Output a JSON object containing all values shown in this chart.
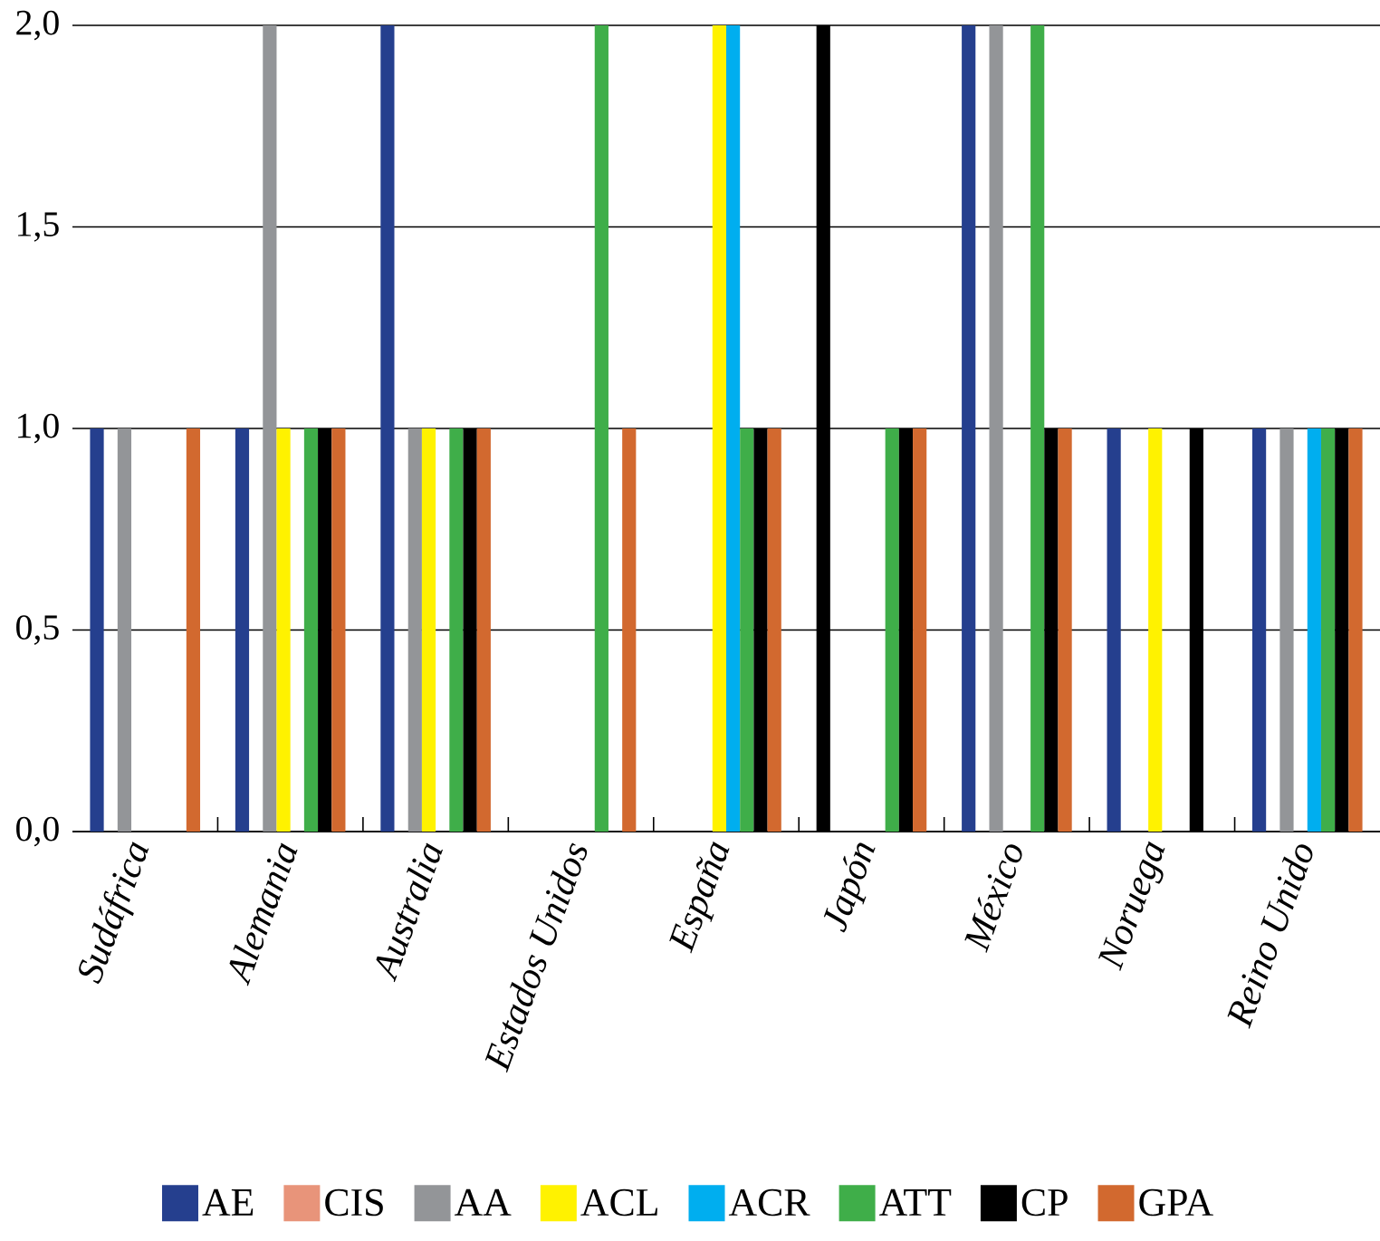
{
  "chart_data": {
    "type": "bar",
    "categories": [
      "Sudáfrica",
      "Alemania",
      "Australia",
      "Estados Unidos",
      "España",
      "Japón",
      "México",
      "Noruega",
      "Reino Unido"
    ],
    "series": [
      {
        "name": "AE",
        "color": "#253f8e",
        "colors": [
          "#253f8e",
          "#253f8e",
          "#253f8e",
          "#253f8e",
          "#253f8e",
          "#000000",
          "#253f8e",
          "#253f8e",
          "#253f8e"
        ],
        "values": [
          1,
          1,
          2,
          0,
          0,
          2,
          2,
          1,
          1
        ]
      },
      {
        "name": "CIS",
        "color": "#e8947a",
        "values": [
          0,
          0,
          0,
          0,
          0,
          0,
          0,
          0,
          0
        ]
      },
      {
        "name": "AA",
        "color": "#939598",
        "values": [
          1,
          2,
          1,
          0,
          0,
          0,
          2,
          0,
          1
        ]
      },
      {
        "name": "ACL",
        "color": "#fff200",
        "values": [
          0,
          1,
          1,
          0,
          2,
          0,
          0,
          1,
          0
        ]
      },
      {
        "name": "ACR",
        "color": "#00aeef",
        "values": [
          0,
          0,
          0,
          0,
          2,
          0,
          0,
          0,
          1
        ]
      },
      {
        "name": "ATT",
        "color": "#3fae49",
        "values": [
          0,
          1,
          1,
          2,
          1,
          1,
          2,
          0,
          1
        ]
      },
      {
        "name": "CP",
        "color": "#000000",
        "values": [
          0,
          1,
          1,
          0,
          1,
          1,
          1,
          1,
          1
        ]
      },
      {
        "name": "GPA",
        "color": "#d2692f",
        "values": [
          1,
          1,
          1,
          1,
          1,
          1,
          1,
          0,
          1
        ]
      }
    ],
    "ylim": [
      0,
      2
    ],
    "yticks": [
      {
        "value": 0,
        "label": "0,0"
      },
      {
        "value": 0.5,
        "label": "0,5"
      },
      {
        "value": 1,
        "label": "1,0"
      },
      {
        "value": 1.5,
        "label": "1,5"
      },
      {
        "value": 2,
        "label": "2,0"
      }
    ],
    "grid": "y",
    "legend": "bottom"
  }
}
